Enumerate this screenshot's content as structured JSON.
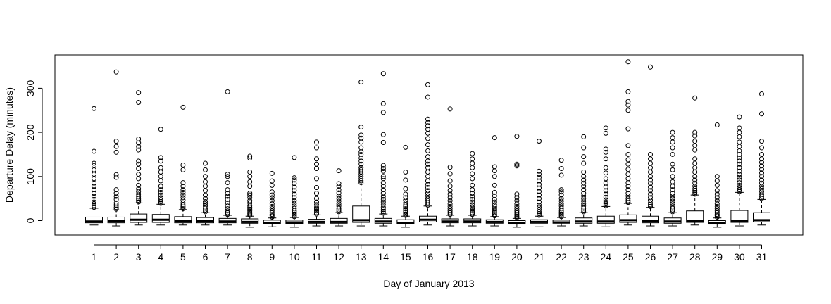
{
  "chart_data": {
    "type": "box",
    "title": "",
    "xlabel": "Day of January 2013",
    "ylabel": "Departure Delay (minutes)",
    "ylim": [
      -30,
      375
    ],
    "y_ticks": [
      0,
      100,
      200,
      300
    ],
    "grid": false,
    "categories": [
      "1",
      "2",
      "3",
      "4",
      "5",
      "6",
      "7",
      "8",
      "9",
      "10",
      "11",
      "12",
      "13",
      "14",
      "15",
      "16",
      "17",
      "18",
      "19",
      "20",
      "21",
      "22",
      "23",
      "24",
      "25",
      "26",
      "27",
      "28",
      "29",
      "30",
      "31"
    ],
    "boxes": [
      {
        "day": "1",
        "whisker_low": -10,
        "q1": -5,
        "median": -2,
        "q3": 8,
        "whisker_high": 28,
        "outliers": [
          30,
          34,
          38,
          42,
          48,
          55,
          62,
          70,
          78,
          85,
          95,
          105,
          115,
          125,
          130,
          157,
          254
        ]
      },
      {
        "day": "2",
        "whisker_low": -12,
        "q1": -5,
        "median": -1,
        "q3": 8,
        "whisker_high": 24,
        "outliers": [
          26,
          30,
          35,
          40,
          48,
          55,
          62,
          70,
          98,
          104,
          155,
          168,
          180,
          337
        ]
      },
      {
        "day": "3",
        "whisker_low": -10,
        "q1": -4,
        "median": 2,
        "q3": 15,
        "whisker_high": 40,
        "outliers": [
          42,
          46,
          50,
          55,
          60,
          66,
          72,
          80,
          95,
          105,
          118,
          128,
          135,
          160,
          168,
          176,
          185,
          268,
          290
        ]
      },
      {
        "day": "4",
        "whisker_low": -10,
        "q1": -4,
        "median": 2,
        "q3": 14,
        "whisker_high": 37,
        "outliers": [
          39,
          43,
          47,
          52,
          58,
          64,
          70,
          78,
          90,
          100,
          110,
          120,
          135,
          143,
          207
        ]
      },
      {
        "day": "5",
        "whisker_low": -10,
        "q1": -5,
        "median": 0,
        "q3": 9,
        "whisker_high": 25,
        "outliers": [
          27,
          31,
          35,
          40,
          46,
          52,
          58,
          64,
          70,
          78,
          86,
          115,
          126,
          257
        ]
      },
      {
        "day": "6",
        "whisker_low": -10,
        "q1": -5,
        "median": -1,
        "q3": 7,
        "whisker_high": 18,
        "outliers": [
          20,
          24,
          28,
          33,
          38,
          43,
          50,
          58,
          68,
          78,
          88,
          100,
          115,
          130
        ]
      },
      {
        "day": "7",
        "whisker_low": -10,
        "q1": -5,
        "median": -2,
        "q3": 5,
        "whisker_high": 12,
        "outliers": [
          14,
          18,
          22,
          27,
          33,
          40,
          48,
          55,
          62,
          70,
          86,
          100,
          105,
          292
        ]
      },
      {
        "day": "8",
        "whisker_low": -15,
        "q1": -6,
        "median": -3,
        "q3": 4,
        "whisker_high": 10,
        "outliers": [
          12,
          15,
          18,
          22,
          26,
          30,
          34,
          40,
          45,
          52,
          58,
          62,
          78,
          88,
          100,
          110,
          142,
          146
        ]
      },
      {
        "day": "9",
        "whisker_low": -14,
        "q1": -7,
        "median": -5,
        "q3": 1,
        "whisker_high": 6,
        "outliers": [
          8,
          11,
          14,
          18,
          22,
          27,
          32,
          38,
          45,
          52,
          58,
          65,
          80,
          90,
          107
        ]
      },
      {
        "day": "10",
        "whisker_low": -15,
        "q1": -7,
        "median": -4,
        "q3": 1,
        "whisker_high": 7,
        "outliers": [
          9,
          12,
          15,
          19,
          23,
          28,
          33,
          39,
          45,
          52,
          60,
          68,
          76,
          84,
          92,
          97,
          143
        ]
      },
      {
        "day": "11",
        "whisker_low": -12,
        "q1": -6,
        "median": -3,
        "q3": 3,
        "whisker_high": 13,
        "outliers": [
          15,
          18,
          22,
          26,
          30,
          36,
          42,
          50,
          62,
          75,
          95,
          118,
          128,
          140,
          165,
          178
        ]
      },
      {
        "day": "12",
        "whisker_low": -12,
        "q1": -6,
        "median": -3,
        "q3": 5,
        "whisker_high": 18,
        "outliers": [
          20,
          24,
          28,
          33,
          38,
          44,
          50,
          56,
          63,
          70,
          78,
          84,
          113
        ]
      },
      {
        "day": "13",
        "whisker_low": -12,
        "q1": -4,
        "median": 1,
        "q3": 33,
        "whisker_high": 83,
        "outliers": [
          86,
          90,
          95,
          100,
          105,
          110,
          115,
          120,
          128,
          135,
          142,
          150,
          156,
          165,
          178,
          187,
          194,
          212,
          314
        ]
      },
      {
        "day": "14",
        "whisker_low": -12,
        "q1": -6,
        "median": -2,
        "q3": 5,
        "whisker_high": 15,
        "outliers": [
          17,
          21,
          25,
          30,
          36,
          42,
          48,
          55,
          62,
          70,
          78,
          86,
          95,
          100,
          112,
          118,
          125,
          177,
          195,
          245,
          265,
          333
        ]
      },
      {
        "day": "15",
        "whisker_low": -15,
        "q1": -7,
        "median": -5,
        "q3": 2,
        "whisker_high": 10,
        "outliers": [
          12,
          15,
          19,
          23,
          27,
          31,
          35,
          40,
          46,
          52,
          60,
          72,
          92,
          110,
          166
        ]
      },
      {
        "day": "16",
        "whisker_low": -10,
        "q1": -3,
        "median": 2,
        "q3": 10,
        "whisker_high": 33,
        "outliers": [
          35,
          40,
          45,
          50,
          56,
          62,
          68,
          75,
          82,
          90,
          100,
          110,
          120,
          128,
          135,
          145,
          158,
          172,
          186,
          198,
          207,
          215,
          222,
          230,
          280,
          308
        ]
      },
      {
        "day": "17",
        "whisker_low": -12,
        "q1": -5,
        "median": -2,
        "q3": 4,
        "whisker_high": 12,
        "outliers": [
          14,
          18,
          22,
          27,
          32,
          38,
          45,
          52,
          60,
          68,
          78,
          90,
          106,
          121,
          253
        ]
      },
      {
        "day": "18",
        "whisker_low": -12,
        "q1": -5,
        "median": -2,
        "q3": 4,
        "whisker_high": 12,
        "outliers": [
          14,
          18,
          22,
          26,
          30,
          36,
          42,
          48,
          55,
          62,
          70,
          80,
          95,
          106,
          120,
          130,
          140,
          152
        ]
      },
      {
        "day": "19",
        "whisker_low": -12,
        "q1": -6,
        "median": -3,
        "q3": 2,
        "whisker_high": 9,
        "outliers": [
          11,
          14,
          18,
          22,
          26,
          31,
          36,
          42,
          48,
          56,
          64,
          80,
          100,
          113,
          122,
          188
        ]
      },
      {
        "day": "20",
        "whisker_low": -15,
        "q1": -8,
        "median": -5,
        "q3": 0,
        "whisker_high": 5,
        "outliers": [
          7,
          10,
          14,
          18,
          22,
          27,
          32,
          38,
          45,
          52,
          60,
          124,
          128,
          191
        ]
      },
      {
        "day": "21",
        "whisker_low": -14,
        "q1": -6,
        "median": -3,
        "q3": 2,
        "whisker_high": 10,
        "outliers": [
          12,
          16,
          20,
          25,
          30,
          35,
          42,
          50,
          58,
          66,
          74,
          82,
          90,
          98,
          105,
          112,
          180
        ]
      },
      {
        "day": "22",
        "whisker_low": -12,
        "q1": -6,
        "median": -4,
        "q3": 1,
        "whisker_high": 7,
        "outliers": [
          9,
          12,
          15,
          19,
          23,
          28,
          33,
          38,
          44,
          50,
          58,
          65,
          70,
          103,
          118,
          137
        ]
      },
      {
        "day": "23",
        "whisker_low": -12,
        "q1": -6,
        "median": -2,
        "q3": 6,
        "whisker_high": 18,
        "outliers": [
          20,
          24,
          28,
          33,
          38,
          44,
          50,
          56,
          62,
          70,
          78,
          85,
          92,
          100,
          110,
          130,
          145,
          165,
          190
        ]
      },
      {
        "day": "24",
        "whisker_low": -14,
        "q1": -6,
        "median": -2,
        "q3": 10,
        "whisker_high": 32,
        "outliers": [
          34,
          38,
          42,
          47,
          53,
          60,
          68,
          76,
          85,
          95,
          108,
          120,
          140,
          155,
          162,
          198,
          210
        ]
      },
      {
        "day": "25",
        "whisker_low": -10,
        "q1": -4,
        "median": 1,
        "q3": 13,
        "whisker_high": 39,
        "outliers": [
          41,
          45,
          50,
          56,
          62,
          70,
          78,
          86,
          95,
          105,
          116,
          128,
          138,
          150,
          170,
          208,
          250,
          262,
          270,
          292,
          360
        ]
      },
      {
        "day": "26",
        "whisker_low": -12,
        "q1": -5,
        "median": -1,
        "q3": 10,
        "whisker_high": 30,
        "outliers": [
          32,
          36,
          40,
          46,
          52,
          60,
          68,
          76,
          84,
          92,
          100,
          110,
          120,
          130,
          140,
          150,
          348
        ]
      },
      {
        "day": "27",
        "whisker_low": -12,
        "q1": -6,
        "median": -2,
        "q3": 6,
        "whisker_high": 18,
        "outliers": [
          20,
          24,
          28,
          33,
          38,
          44,
          50,
          56,
          62,
          70,
          78,
          88,
          100,
          115,
          128,
          150,
          165,
          178,
          188,
          200
        ]
      },
      {
        "day": "28",
        "whisker_low": -10,
        "q1": -4,
        "median": -1,
        "q3": 22,
        "whisker_high": 58,
        "outliers": [
          60,
          64,
          68,
          72,
          78,
          85,
          92,
          100,
          110,
          120,
          130,
          140,
          160,
          170,
          180,
          192,
          200,
          278
        ]
      },
      {
        "day": "29",
        "whisker_low": -15,
        "q1": -8,
        "median": -5,
        "q3": 0,
        "whisker_high": 6,
        "outliers": [
          8,
          11,
          14,
          18,
          22,
          27,
          32,
          38,
          45,
          52,
          60,
          68,
          80,
          90,
          100,
          217
        ]
      },
      {
        "day": "30",
        "whisker_low": -12,
        "q1": -4,
        "median": 0,
        "q3": 23,
        "whisker_high": 64,
        "outliers": [
          66,
          70,
          75,
          80,
          86,
          92,
          98,
          105,
          112,
          120,
          128,
          135,
          142,
          150,
          158,
          168,
          178,
          190,
          200,
          210,
          235
        ]
      },
      {
        "day": "31",
        "whisker_low": -10,
        "q1": -3,
        "median": 1,
        "q3": 18,
        "whisker_high": 48,
        "outliers": [
          50,
          55,
          60,
          66,
          72,
          78,
          85,
          92,
          100,
          108,
          116,
          124,
          132,
          140,
          150,
          165,
          180,
          242,
          287
        ]
      }
    ]
  }
}
